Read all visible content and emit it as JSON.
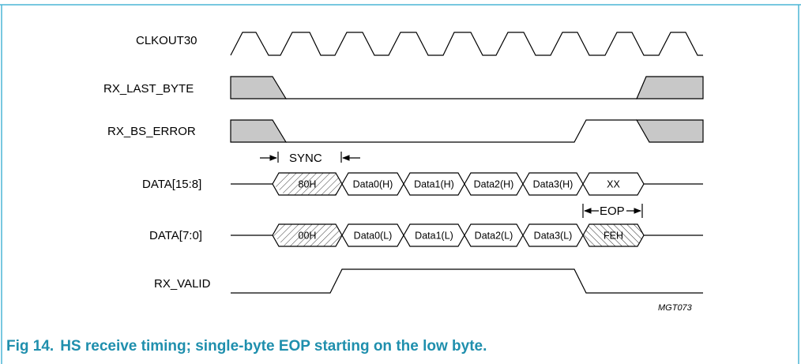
{
  "signals": {
    "clkout30": "CLKOUT30",
    "rx_last_byte": "RX_LAST_BYTE",
    "rx_bs_error": "RX_BS_ERROR",
    "data_high": "DATA[15:8]",
    "data_low": "DATA[7:0]",
    "rx_valid": "RX_VALID"
  },
  "bus_high": [
    "80H",
    "Data0(H)",
    "Data1(H)",
    "Data2(H)",
    "Data3(H)",
    "XX"
  ],
  "bus_low": [
    "00H",
    "Data0(L)",
    "Data1(L)",
    "Data2(L)",
    "Data3(L)",
    "FEH"
  ],
  "annotations": {
    "sync": "SYNC",
    "eop": "EOP"
  },
  "figure_id": "MGT073",
  "caption": {
    "number": "Fig 14.",
    "text": "HS receive timing; single-byte EOP starting on the low byte."
  },
  "colors": {
    "frame": "#4cb6d6",
    "caption": "#1f8fad",
    "shade": "#c8c8c8"
  }
}
